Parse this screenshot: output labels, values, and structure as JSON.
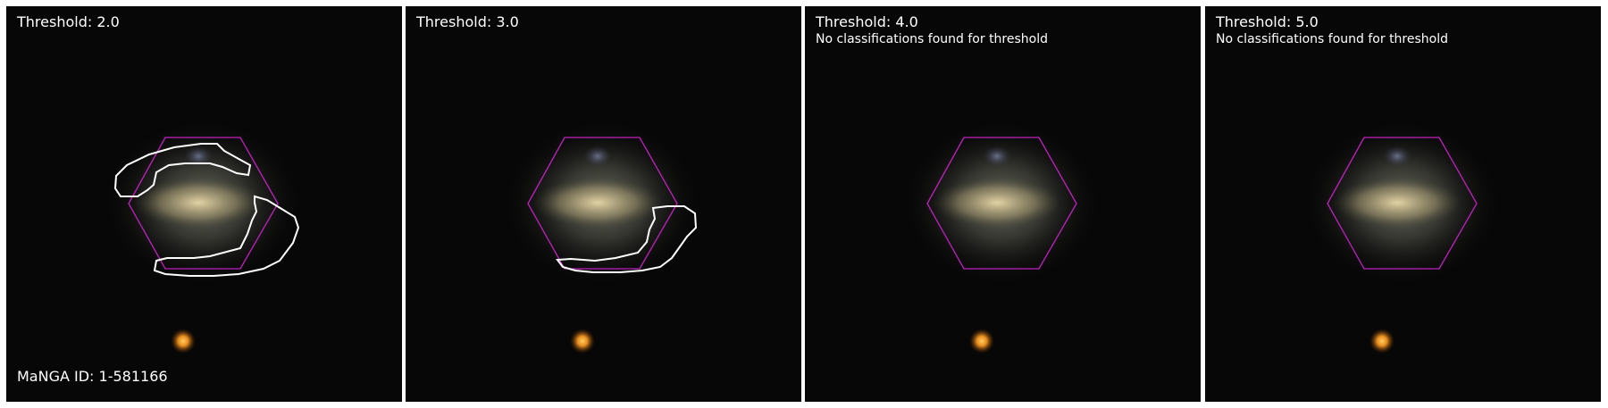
{
  "figure": {
    "manga_id_label": "MaNGA ID: 1-581166",
    "panels": [
      {
        "title": "Threshold: 2.0",
        "note": "",
        "has_contour": true,
        "contour_set": "t2"
      },
      {
        "title": "Threshold: 3.0",
        "note": "",
        "has_contour": true,
        "contour_set": "t3"
      },
      {
        "title": "Threshold: 4.0",
        "note": "No classifications found for threshold",
        "has_contour": false
      },
      {
        "title": "Threshold: 5.0",
        "note": "No classifications found for threshold",
        "has_contour": false
      }
    ]
  },
  "colors": {
    "background": "#070707",
    "galaxy_core": "#d8c99a",
    "galaxy_halo": "#8a8f80",
    "foreground_star": "#ffb030",
    "hexagon_outline": "#c020c0",
    "contour_line": "#ffffff"
  }
}
